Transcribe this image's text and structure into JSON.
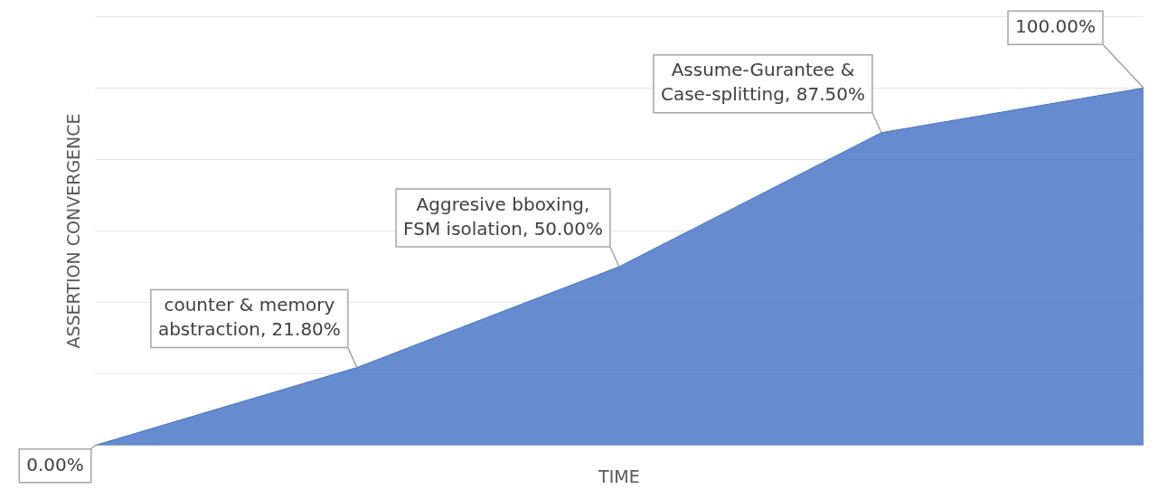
{
  "chart_data": {
    "type": "area",
    "xlabel": "TIME",
    "ylabel": "ASSERTION CONVERGENCE",
    "categories": [
      null,
      null,
      null,
      null,
      null
    ],
    "series": [
      {
        "color": "#4472c4",
        "values": [
          0,
          21.8,
          50,
          87.5,
          100
        ],
        "value_labels": [
          "0.00%",
          "counter & memory abstraction, 21.80%",
          "Aggresive bboxing, FSM isolation, 50.00%",
          "Assume-Gurantee & Case-splitting, 87.50%",
          "100.00%"
        ]
      }
    ],
    "ylim": [
      0,
      120
    ],
    "yticks": [
      {
        "value": 0,
        "label": null
      },
      {
        "value": 20,
        "label": null
      },
      {
        "value": 40,
        "label": null
      },
      {
        "value": 60,
        "label": null
      },
      {
        "value": 80,
        "label": null
      },
      {
        "value": 100,
        "label": null
      },
      {
        "value": 120,
        "label": null
      }
    ],
    "grid": "y",
    "legend": false
  }
}
